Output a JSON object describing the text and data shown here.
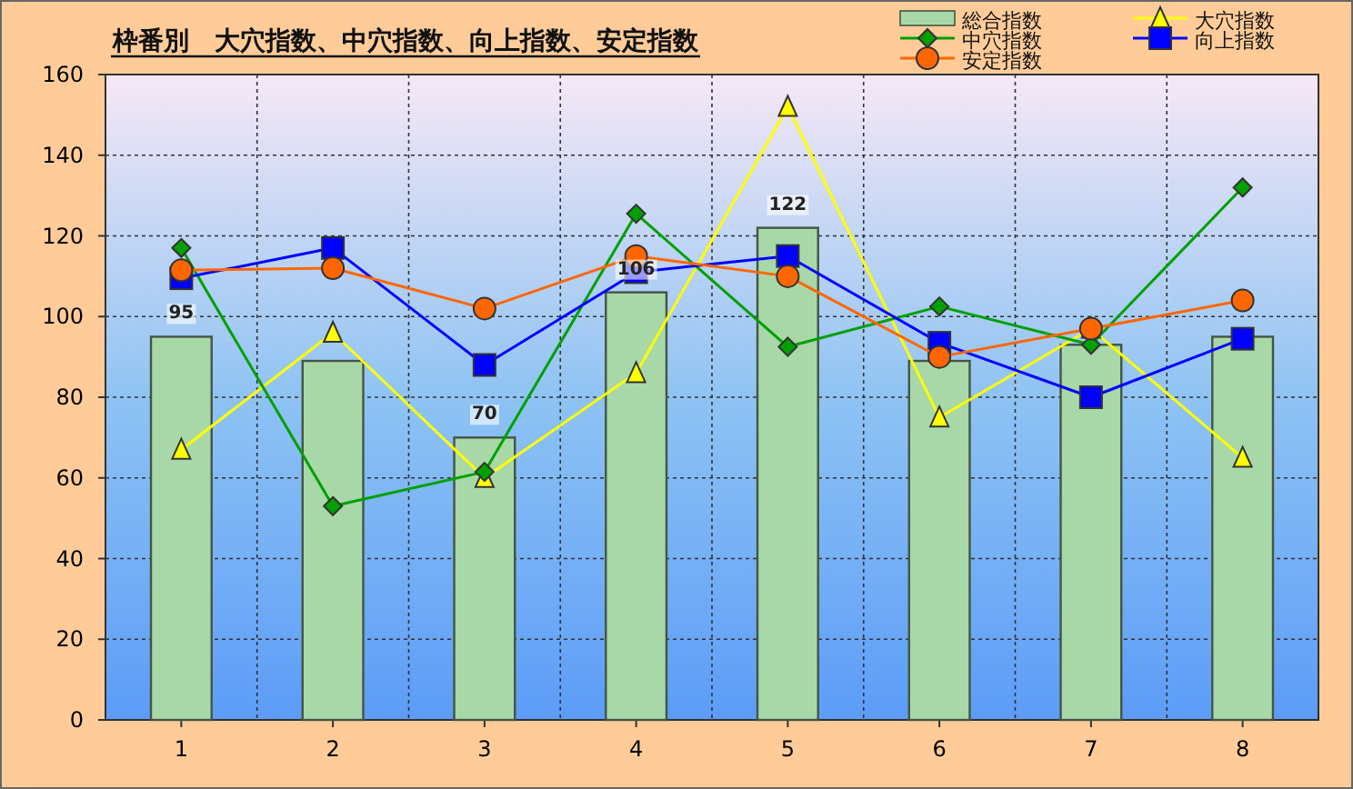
{
  "chart_data": {
    "type": "bar",
    "title": "枠番別　大穴指数、中穴指数、向上指数、安定指数",
    "categories": [
      "1",
      "2",
      "3",
      "4",
      "5",
      "6",
      "7",
      "8"
    ],
    "series": [
      {
        "name": "総合指数",
        "color": "#a8d8a8",
        "values": [
          95,
          89,
          70,
          106,
          122,
          89,
          93,
          95
        ],
        "value_labels": [
          "95",
          null,
          "70",
          "106",
          "122",
          null,
          null,
          null
        ]
      },
      {
        "name": "大穴指数",
        "type": "line",
        "marker": "triangle",
        "color": "#ffff00",
        "values": [
          67,
          96,
          60,
          86,
          152,
          75,
          97,
          65
        ]
      },
      {
        "name": "中穴指数",
        "type": "line",
        "marker": "diamond",
        "color": "#00a000",
        "values": [
          117,
          53,
          61.5,
          125.5,
          92.5,
          102.5,
          93,
          132
        ]
      },
      {
        "name": "向上指数",
        "type": "line",
        "marker": "square",
        "color": "#0000ff",
        "values": [
          109.5,
          117,
          88,
          111,
          115,
          93.5,
          80,
          94.5
        ]
      },
      {
        "name": "安定指数",
        "type": "line",
        "marker": "circle",
        "color": "#ff6600",
        "values": [
          111.5,
          112,
          102,
          115,
          110,
          90,
          97,
          104
        ]
      }
    ],
    "ylim": [
      0,
      160
    ],
    "yticks": [
      0,
      20,
      40,
      60,
      80,
      100,
      120,
      140,
      160
    ],
    "grid": true,
    "legend": "top right"
  }
}
